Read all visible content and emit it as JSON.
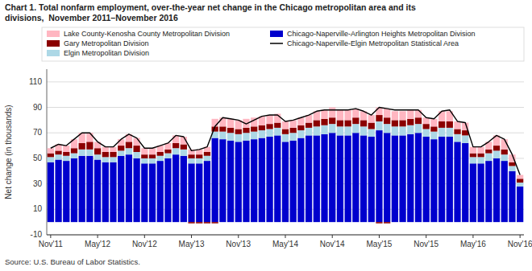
{
  "chart_data": {
    "type": "bar",
    "stacked": true,
    "grid": true,
    "legend": "top",
    "title": "Chart 1. Total nonfarm employment, over-the-year net change in the Chicago metropolitan area and its\ndivisions,  November 2011–November 2016",
    "y_label": "Net change (in thousands)",
    "source": "Source: U.S. Bureau of Labor Statistics.",
    "ylim": [
      -10,
      120
    ],
    "yticks": [
      -10,
      10,
      30,
      50,
      70,
      90,
      110
    ],
    "categories": [
      "Nov'11",
      null,
      null,
      null,
      null,
      null,
      "May'12",
      null,
      null,
      null,
      null,
      null,
      "Nov'12",
      null,
      null,
      null,
      null,
      null,
      "May'13",
      null,
      null,
      null,
      null,
      null,
      "Nov'13",
      null,
      null,
      null,
      null,
      null,
      "May'14",
      null,
      null,
      null,
      null,
      null,
      "Nov'14",
      null,
      null,
      null,
      null,
      null,
      "May'15",
      null,
      null,
      null,
      null,
      null,
      "Nov'15",
      null,
      null,
      null,
      null,
      null,
      "May'16",
      null,
      null,
      null,
      null,
      null,
      "Nov'16"
    ],
    "series": [
      {
        "name": "Chicago-Naperville-Arlington Heights Metropolitan Division",
        "color": "#0000CD",
        "type": "bar",
        "values": [
          47,
          49,
          48,
          50,
          52,
          52,
          49,
          47,
          47,
          52,
          53,
          50,
          46,
          46,
          48,
          50,
          53,
          52,
          46,
          46,
          48,
          66,
          65,
          64,
          63,
          64,
          65,
          66,
          67,
          68,
          63,
          64,
          66,
          68,
          68,
          69,
          70,
          68,
          68,
          70,
          68,
          67,
          72,
          70,
          68,
          68,
          69,
          70,
          67,
          65,
          67,
          67,
          63,
          62,
          46,
          46,
          48,
          50,
          48,
          40,
          28
        ]
      },
      {
        "name": "Elgin Metropolitan Division",
        "color": "#ADD8E6",
        "type": "bar",
        "values": [
          4,
          4,
          4,
          4,
          5,
          5,
          4,
          4,
          4,
          4,
          5,
          5,
          4,
          4,
          4,
          4,
          5,
          5,
          4,
          4,
          4,
          5,
          6,
          6,
          6,
          6,
          6,
          6,
          6,
          6,
          6,
          6,
          6,
          6,
          7,
          7,
          7,
          7,
          7,
          7,
          7,
          6,
          7,
          7,
          7,
          7,
          7,
          7,
          6,
          6,
          7,
          7,
          6,
          6,
          5,
          5,
          6,
          6,
          5,
          4,
          3
        ]
      },
      {
        "name": "Gary Metropolitan Division",
        "color": "#8B0000",
        "type": "bar",
        "values": [
          3,
          3,
          3,
          4,
          5,
          6,
          5,
          4,
          4,
          4,
          5,
          5,
          3,
          3,
          3,
          3,
          4,
          4,
          3,
          3,
          3,
          4,
          4,
          4,
          4,
          4,
          4,
          4,
          4,
          4,
          4,
          4,
          4,
          4,
          5,
          5,
          5,
          5,
          5,
          5,
          5,
          5,
          5,
          5,
          5,
          5,
          5,
          5,
          4,
          4,
          5,
          5,
          4,
          4,
          3,
          3,
          3,
          4,
          4,
          3,
          3
        ]
      },
      {
        "name": "Lake County-Kenosha County Metropolitan Division",
        "color": "#FFB6C1",
        "type": "bar",
        "values": [
          4,
          5,
          5,
          7,
          8,
          7,
          5,
          4,
          4,
          5,
          6,
          6,
          5,
          5,
          5,
          5,
          6,
          6,
          4,
          4,
          4,
          6,
          7,
          7,
          7,
          7,
          7,
          7,
          7,
          7,
          6,
          6,
          6,
          6,
          7,
          7,
          8,
          8,
          8,
          7,
          7,
          6,
          6,
          7,
          7,
          7,
          7,
          6,
          5,
          6,
          8,
          8,
          6,
          6,
          5,
          5,
          6,
          8,
          8,
          6,
          3
        ]
      },
      {
        "name": "Gary Metropolitan Division",
        "color": "#8B0000",
        "type": "bar",
        "values": [
          0,
          0,
          0,
          0,
          0,
          0,
          0,
          0,
          0,
          0,
          0,
          0,
          0,
          0,
          0,
          0,
          0,
          0,
          -1,
          -1,
          -1,
          -1,
          0,
          0,
          0,
          0,
          0,
          0,
          0,
          0,
          0,
          0,
          0,
          0,
          0,
          0,
          0,
          0,
          0,
          0,
          0,
          0,
          -1,
          -1,
          0,
          0,
          0,
          0,
          0,
          0,
          0,
          0,
          0,
          0,
          0,
          0,
          0,
          0,
          0,
          0,
          0
        ]
      },
      {
        "name": "Chicago-Naperville-Elgin Metropolitan Statistical Area",
        "color": "#000000",
        "type": "line",
        "values": [
          58,
          61,
          60,
          65,
          70,
          70,
          63,
          59,
          59,
          65,
          69,
          66,
          58,
          58,
          60,
          62,
          68,
          67,
          56,
          57,
          59,
          75,
          82,
          81,
          80,
          77,
          80,
          83,
          84,
          84,
          79,
          80,
          82,
          84,
          87,
          88,
          88,
          88,
          88,
          89,
          87,
          84,
          90,
          89,
          88,
          88,
          88,
          88,
          82,
          81,
          87,
          88,
          79,
          78,
          59,
          59,
          63,
          68,
          65,
          53,
          37
        ]
      }
    ]
  }
}
